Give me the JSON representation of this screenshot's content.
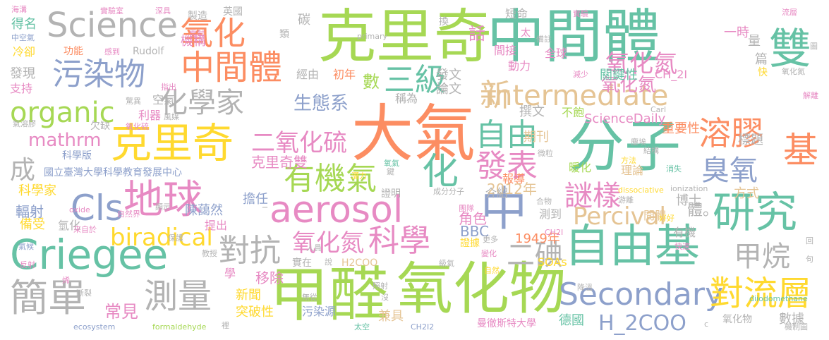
{
  "palette": {
    "green": "#a6d854",
    "mint": "#66c2a5",
    "orange": "#fc8d62",
    "blue": "#8da0cb",
    "pink": "#e78ac3",
    "yellow": "#ffd92f",
    "tan": "#e5c494",
    "gray": "#b3b3b3"
  },
  "words": [
    {
      "text": "克里奇",
      "color": "green"
    },
    {
      "text": "中間體",
      "color": "mint"
    },
    {
      "text": "大氣",
      "color": "orange"
    },
    {
      "text": "分子",
      "color": "mint"
    },
    {
      "text": "甲醛",
      "color": "green"
    },
    {
      "text": "氧化物",
      "color": "green"
    },
    {
      "text": "克里奇",
      "color": "yellow"
    },
    {
      "text": "Criegee",
      "color": "mint"
    },
    {
      "text": "aerosol",
      "color": "pink"
    },
    {
      "text": "intermediate",
      "color": "tan"
    },
    {
      "text": "自由基",
      "color": "mint"
    },
    {
      "text": "Science",
      "color": "gray"
    },
    {
      "text": "中間體",
      "color": "orange"
    },
    {
      "text": "污染物",
      "color": "blue"
    },
    {
      "text": "中",
      "color": "blue"
    },
    {
      "text": "化",
      "color": "mint"
    },
    {
      "text": "研究",
      "color": "mint"
    },
    {
      "text": "溶膠",
      "color": "orange"
    },
    {
      "text": "地球",
      "color": "pink"
    },
    {
      "text": "簡單",
      "color": "gray"
    },
    {
      "text": "測量",
      "color": "gray"
    },
    {
      "text": "化學家",
      "color": "gray"
    },
    {
      "text": "有機氣",
      "color": "green"
    },
    {
      "text": "自由",
      "color": "mint"
    },
    {
      "text": "發表",
      "color": "pink"
    },
    {
      "text": "雙",
      "color": "mint"
    },
    {
      "text": "氧化",
      "color": "orange"
    },
    {
      "text": "三級",
      "color": "mint"
    },
    {
      "text": "臭氧",
      "color": "blue"
    },
    {
      "text": "謎樣",
      "color": "pink"
    },
    {
      "text": "Percival",
      "color": "tan"
    },
    {
      "text": "Secondary",
      "color": "blue"
    },
    {
      "text": "對流層",
      "color": "yellow"
    },
    {
      "text": "biradical",
      "color": "yellow"
    },
    {
      "text": "organic",
      "color": "green"
    },
    {
      "text": "Cls",
      "color": "blue"
    },
    {
      "text": "科學",
      "color": "pink"
    },
    {
      "text": "對抗",
      "color": "gray"
    },
    {
      "text": "甲烷",
      "color": "gray"
    },
    {
      "text": "二碘",
      "color": "gray"
    },
    {
      "text": "氧化氮",
      "color": "pink"
    },
    {
      "text": "氧化氮",
      "color": "pink"
    },
    {
      "text": "二氧化硫",
      "color": "pink"
    },
    {
      "text": "新",
      "color": "tan"
    },
    {
      "text": "基",
      "color": "orange"
    },
    {
      "text": "成",
      "color": "gray"
    },
    {
      "text": "mathrm",
      "color": "pink"
    },
    {
      "text": "H_2COO",
      "color": "blue"
    },
    {
      "text": "生態系",
      "color": "blue"
    },
    {
      "text": "數",
      "color": "green"
    },
    {
      "text": "常見",
      "color": "pink"
    },
    {
      "text": "國立臺灣大學科學教育發展中心",
      "color": "blue"
    },
    {
      "text": "克里奇雙",
      "color": "pink"
    },
    {
      "text": "氧化氮",
      "color": "pink"
    },
    {
      "text": "ScienceDaily",
      "color": "pink"
    },
    {
      "text": "陳藹然",
      "color": "blue"
    },
    {
      "text": "擔任",
      "color": "blue"
    },
    {
      "text": "輻射",
      "color": "blue"
    },
    {
      "text": "科學家",
      "color": "yellow"
    },
    {
      "text": "角色",
      "color": "pink"
    },
    {
      "text": "BBC",
      "color": "blue"
    },
    {
      "text": "1949年",
      "color": "orange"
    },
    {
      "text": "2012年",
      "color": "tan"
    },
    {
      "text": "移除",
      "color": "pink"
    },
    {
      "text": "新聞",
      "color": "yellow"
    },
    {
      "text": "突破性",
      "color": "yellow"
    },
    {
      "text": "污染源",
      "color": "blue"
    },
    {
      "text": "兼具",
      "color": "tan"
    },
    {
      "text": "曼徹斯特大學",
      "color": "pink"
    },
    {
      "text": "德國",
      "color": "mint"
    },
    {
      "text": "氧化物",
      "color": "gray"
    },
    {
      "text": "數據",
      "color": "gray"
    },
    {
      "text": "SOAs",
      "color": "yellow"
    },
    {
      "text": "H2COO",
      "color": "tan"
    },
    {
      "text": "重要性",
      "color": "orange"
    },
    {
      "text": "標題",
      "color": "gray"
    },
    {
      "text": "理論",
      "color": "tan"
    },
    {
      "text": "方式",
      "color": "tan"
    },
    {
      "text": "博士",
      "color": "gray"
    },
    {
      "text": "體。",
      "color": "gray"
    },
    {
      "text": "間體",
      "color": "tan"
    },
    {
      "text": "有機",
      "color": "gray"
    },
    {
      "text": "不飽",
      "color": "green"
    },
    {
      "text": "暖化",
      "color": "green"
    },
    {
      "text": "期刊",
      "color": "tan"
    },
    {
      "text": "報導",
      "color": "orange"
    },
    {
      "text": "證明",
      "color": "gray"
    },
    {
      "text": "介紹",
      "color": "gray"
    },
    {
      "text": "測到",
      "color": "gray"
    },
    {
      "text": "關鍵性",
      "color": "mint"
    },
    {
      "text": "CH_2I",
      "color": "pink"
    },
    {
      "text": "撰文",
      "color": "gray"
    },
    {
      "text": "論文",
      "color": "gray"
    },
    {
      "text": "發文",
      "color": "gray"
    },
    {
      "text": "稱為",
      "color": "gray"
    },
    {
      "text": "經由",
      "color": "gray"
    },
    {
      "text": "初年",
      "color": "orange"
    },
    {
      "text": "發現",
      "color": "gray"
    },
    {
      "text": "支持",
      "color": "pink"
    },
    {
      "text": "冷卻",
      "color": "yellow"
    },
    {
      "text": "得名",
      "color": "mint"
    },
    {
      "text": "功能",
      "color": "orange"
    },
    {
      "text": "機構",
      "color": "pink"
    },
    {
      "text": "Rudolf",
      "color": "gray"
    },
    {
      "text": "全球",
      "color": "pink"
    },
    {
      "text": "動力",
      "color": "pink"
    },
    {
      "text": "間接",
      "color": "pink"
    },
    {
      "text": "短命",
      "color": "gray"
    },
    {
      "text": "話",
      "color": "pink"
    },
    {
      "text": "英國",
      "color": "gray"
    },
    {
      "text": "製造",
      "color": "gray"
    },
    {
      "text": "碳",
      "color": "gray"
    },
    {
      "text": "一時",
      "color": "pink"
    },
    {
      "text": "量",
      "color": "gray"
    },
    {
      "text": "篇",
      "color": "gray"
    },
    {
      "text": "空氣",
      "color": "gray"
    },
    {
      "text": "利器",
      "color": "pink"
    },
    {
      "text": "科學版",
      "color": "blue"
    },
    {
      "text": "提出",
      "color": "pink"
    },
    {
      "text": "備受",
      "color": "yellow"
    },
    {
      "text": "氫化",
      "color": "gray"
    },
    {
      "text": "primary",
      "color": "gray"
    },
    {
      "text": "ionization",
      "color": "gray"
    },
    {
      "text": "dissociative",
      "color": "yellow"
    },
    {
      "text": "formaldehyde",
      "color": "green"
    },
    {
      "text": "ecosystem",
      "color": "blue"
    },
    {
      "text": "diiodomethane",
      "color": "mint"
    },
    {
      "text": "CH2I2",
      "color": "blue"
    },
    {
      "text": "CH2I",
      "color": "pink"
    },
    {
      "text": "oxide",
      "color": "pink"
    },
    {
      "text": "Carl",
      "color": "gray"
    },
    {
      "text": "成分分子",
      "color": "gray"
    },
    {
      "text": "海溝",
      "color": "pink"
    },
    {
      "text": "實驗室",
      "color": "pink"
    },
    {
      "text": "深具",
      "color": "pink"
    },
    {
      "text": "雷射",
      "color": "pink"
    },
    {
      "text": "類",
      "color": "gray"
    },
    {
      "text": "換",
      "color": "gray"
    },
    {
      "text": "實驗",
      "color": "pink"
    },
    {
      "text": "流層",
      "color": "pink"
    },
    {
      "text": "圖",
      "color": "gray"
    },
    {
      "text": "解離",
      "color": "pink"
    },
    {
      "text": "快",
      "color": "yellow"
    },
    {
      "text": "氧化氮",
      "color": "gray"
    },
    {
      "text": "太",
      "color": "pink"
    },
    {
      "text": "備註",
      "color": "gray"
    },
    {
      "text": "減少",
      "color": "pink"
    },
    {
      "text": "中空氣",
      "color": "blue"
    },
    {
      "text": "感到",
      "color": "pink"
    },
    {
      "text": "指出",
      "color": "pink"
    },
    {
      "text": "驚異",
      "color": "gray"
    },
    {
      "text": "風媒",
      "color": "gray"
    },
    {
      "text": "欠缺",
      "color": "gray"
    },
    {
      "text": "氧化硫",
      "color": "pink"
    },
    {
      "text": "氣溶膠",
      "color": "gray"
    },
    {
      "text": "塵埃",
      "color": "gray"
    },
    {
      "text": "結構",
      "color": "gray"
    },
    {
      "text": "方法",
      "color": "yellow"
    },
    {
      "text": "微粒",
      "color": "gray"
    },
    {
      "text": "消失",
      "color": "mint"
    },
    {
      "text": "鍵",
      "color": "gray"
    },
    {
      "text": "潛力",
      "color": "yellow"
    },
    {
      "text": "氧氣",
      "color": "mint"
    },
    {
      "text": "合物",
      "color": "gray"
    },
    {
      "text": "游離",
      "color": "gray"
    },
    {
      "text": "好好",
      "color": "yellow"
    },
    {
      "text": "團隊",
      "color": "pink"
    },
    {
      "text": "證據",
      "color": "yellow"
    },
    {
      "text": "更多",
      "color": "gray"
    },
    {
      "text": "人員",
      "color": "gray"
    },
    {
      "text": "實在",
      "color": "gray"
    },
    {
      "text": "說",
      "color": "gray"
    },
    {
      "text": "級氣",
      "color": "gray"
    },
    {
      "text": "變化",
      "color": "pink"
    },
    {
      "text": "自然",
      "color": "yellow"
    },
    {
      "text": "快速",
      "color": "pink"
    },
    {
      "text": "回",
      "color": "gray"
    },
    {
      "text": "句",
      "color": "gray"
    },
    {
      "text": "降溫",
      "color": "gray"
    },
    {
      "text": "照射",
      "color": "gray"
    },
    {
      "text": "沒",
      "color": "gray"
    },
    {
      "text": "無從",
      "color": "gray"
    },
    {
      "text": "太空",
      "color": "mint"
    },
    {
      "text": "機制圖",
      "color": "gray"
    },
    {
      "text": "裡",
      "color": "gray"
    },
    {
      "text": "斷裂",
      "color": "gray"
    },
    {
      "text": "烯",
      "color": "pink"
    },
    {
      "text": "氣候",
      "color": "blue"
    },
    {
      "text": "教授",
      "color": "gray"
    },
    {
      "text": "反射",
      "color": "pink"
    },
    {
      "text": "保護",
      "color": "gray"
    },
    {
      "text": "顯示",
      "color": "gray"
    },
    {
      "text": "來自於",
      "color": "pink"
    },
    {
      "text": "自然界",
      "color": "pink"
    },
    {
      "text": "學",
      "color": "pink"
    },
    {
      "text": "c",
      "color": "gray"
    },
    {
      "text": "_",
      "color": "gray"
    }
  ]
}
